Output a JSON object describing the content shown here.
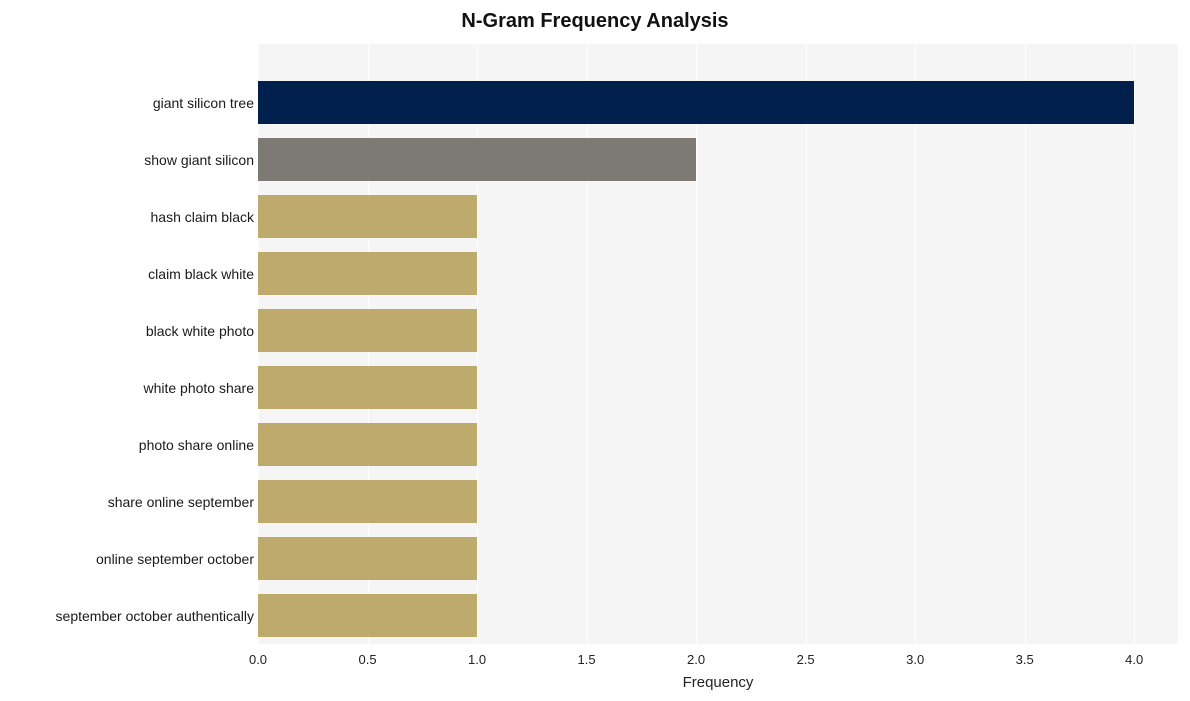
{
  "chart": {
    "type": "bar",
    "orientation": "horizontal",
    "title": "N-Gram Frequency Analysis",
    "title_fontsize": 20,
    "xlabel": "Frequency",
    "xlabel_fontsize": 15,
    "ylabel_fontsize": 14,
    "xtick_fontsize": 13,
    "categories": [
      "giant silicon tree",
      "show giant silicon",
      "hash claim black",
      "claim black white",
      "black white photo",
      "white photo share",
      "photo share online",
      "share online september",
      "online september october",
      "september october authentically"
    ],
    "values": [
      4,
      2,
      1,
      1,
      1,
      1,
      1,
      1,
      1,
      1
    ],
    "bar_colors": [
      "#001f4d",
      "#7d7a73",
      "#bdaa6c",
      "#bdaa6c",
      "#bdaa6c",
      "#bdaa6c",
      "#bdaa6c",
      "#bdaa6c",
      "#bdaa6c",
      "#bdaa6c"
    ],
    "xlim": [
      0.0,
      4.2
    ],
    "xticks": [
      0.0,
      0.5,
      1.0,
      1.5,
      2.0,
      2.5,
      3.0,
      3.5,
      4.0
    ],
    "xtick_labels": [
      "0.0",
      "0.5",
      "1.0",
      "1.5",
      "2.0",
      "2.5",
      "3.0",
      "3.5",
      "4.0"
    ],
    "background_color": "#ffffff",
    "plot_background_color": "#f5f5f5",
    "grid_color": "#ffffff",
    "label_color": "#1a1a1a",
    "bar_height_ratio": 0.77,
    "slot_top_padding": 30
  }
}
